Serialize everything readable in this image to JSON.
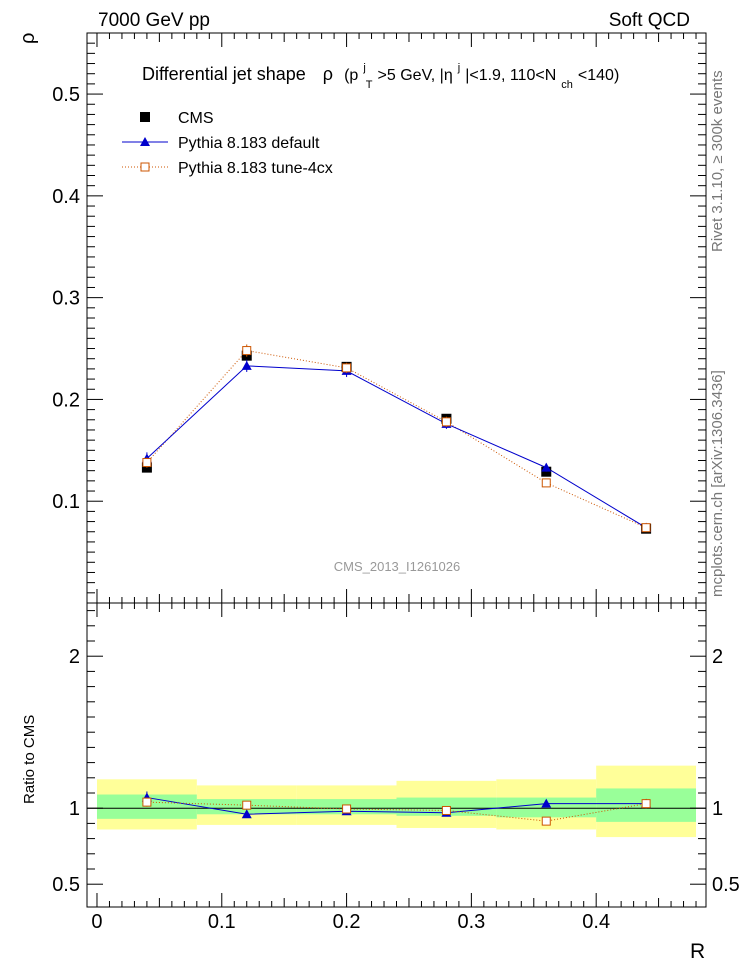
{
  "header": {
    "left": "7000 GeV pp",
    "right": "Soft QCD"
  },
  "side": {
    "rivet": "Rivet 3.1.10, ≥ 300k events",
    "mcplots": "mcplots.cern.ch [arXiv:1306.3436]"
  },
  "watermark": "CMS_2013_I1261026",
  "chart_data": {
    "type": "line",
    "title": {
      "main": "Differential jet shape",
      "rho": "ρ",
      "open": "(p",
      "sub_T": "T",
      "sup_j1": "j",
      "mid1": ">5 GeV, |η",
      "sup_j2": "j",
      "mid2": "|<1.9, 110<N",
      "sub_ch": "ch",
      "close": "<140)"
    },
    "xlabel": "R",
    "ylabel": "ρ",
    "ratio_ylabel": "Ratio to CMS",
    "xlim": [
      -0.008,
      0.488
    ],
    "ylim": [
      0,
      0.56
    ],
    "ratio_ylim": [
      0.35,
      2.35
    ],
    "x_ticks": [
      "0",
      "0.1",
      "0.2",
      "0.3",
      "0.4"
    ],
    "y_ticks": [
      "0.1",
      "0.2",
      "0.3",
      "0.4",
      "0.5"
    ],
    "ratio_ticks": [
      "0.5",
      "1",
      "2"
    ],
    "x": [
      0.04,
      0.12,
      0.2,
      0.28,
      0.36,
      0.44
    ],
    "x_edges": [
      0.0,
      0.08,
      0.16,
      0.24,
      0.32,
      0.4,
      0.48
    ],
    "series": [
      {
        "name": "CMS",
        "values": [
          0.133,
          0.243,
          0.232,
          0.181,
          0.129,
          0.073
        ],
        "errors": [
          0.003,
          0.003,
          0.003,
          0.003,
          0.003,
          0.002
        ],
        "color": "#000000",
        "marker": "filled-square"
      },
      {
        "name": "Pythia 8.183 default",
        "values": [
          0.142,
          0.233,
          0.228,
          0.176,
          0.133,
          0.074
        ],
        "errors": [
          0.006,
          0.006,
          0.006,
          0.005,
          0.004,
          0.003
        ],
        "color": "#0000cc",
        "marker": "filled-triangle"
      },
      {
        "name": "Pythia 8.183 tune-4cx",
        "values": [
          0.138,
          0.248,
          0.231,
          0.178,
          0.118,
          0.074
        ],
        "errors": [
          0.005,
          0.006,
          0.005,
          0.005,
          0.004,
          0.003
        ],
        "color": "#cc5500",
        "marker": "open-square"
      }
    ],
    "ratio": {
      "series": [
        {
          "name": "Pythia 8.183 default",
          "values": [
            1.07,
            0.96,
            0.98,
            0.97,
            1.03,
            1.03
          ],
          "errors": [
            0.04,
            0.02,
            0.02,
            0.02,
            0.02,
            0.03
          ]
        },
        {
          "name": "Pythia 8.183 tune-4cx",
          "values": [
            1.04,
            1.02,
            0.995,
            0.985,
            0.915,
            1.03
          ],
          "errors": [
            0.03,
            0.02,
            0.02,
            0.02,
            0.02,
            0.03
          ]
        }
      ],
      "band_inner": [
        [
          0.93,
          1.09
        ],
        [
          0.96,
          1.06
        ],
        [
          0.96,
          1.06
        ],
        [
          0.95,
          1.07
        ],
        [
          0.94,
          1.07
        ],
        [
          0.91,
          1.13
        ]
      ],
      "band_outer": [
        [
          0.86,
          1.19
        ],
        [
          0.89,
          1.15
        ],
        [
          0.89,
          1.15
        ],
        [
          0.87,
          1.18
        ],
        [
          0.86,
          1.19
        ],
        [
          0.81,
          1.28
        ]
      ],
      "band_inner_color": "#99ff99",
      "band_outer_color": "#ffff99"
    }
  }
}
